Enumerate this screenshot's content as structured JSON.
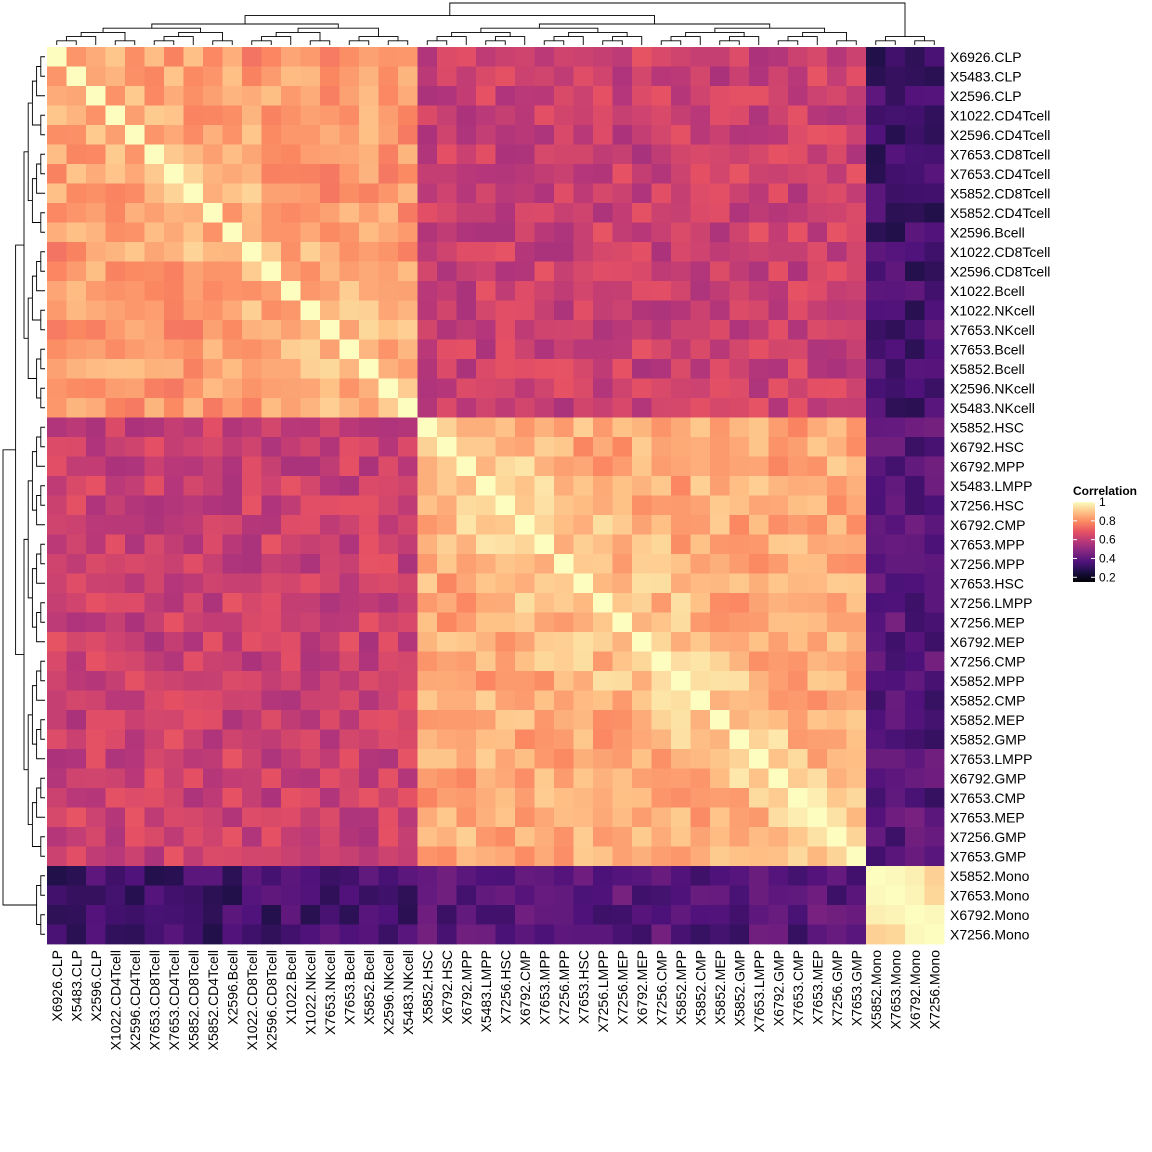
{
  "chart_data": {
    "type": "heatmap",
    "title": "",
    "xlabel": "",
    "ylabel": "",
    "labels": [
      "X6926.CLP",
      "X5483.CLP",
      "X2596.CLP",
      "X1022.CD4Tcell",
      "X2596.CD4Tcell",
      "X7653.CD8Tcell",
      "X7653.CD4Tcell",
      "X5852.CD8Tcell",
      "X5852.CD4Tcell",
      "X2596.Bcell",
      "X1022.CD8Tcell",
      "X2596.CD8Tcell",
      "X1022.Bcell",
      "X1022.NKcell",
      "X7653.NKcell",
      "X7653.Bcell",
      "X5852.Bcell",
      "X2596.NKcell",
      "X5483.NKcell",
      "X5852.HSC",
      "X6792.HSC",
      "X6792.MPP",
      "X5483.LMPP",
      "X7256.HSC",
      "X6792.CMP",
      "X7653.MPP",
      "X7256.MPP",
      "X7653.HSC",
      "X7256.LMPP",
      "X7256.MEP",
      "X6792.MEP",
      "X7256.CMP",
      "X5852.MPP",
      "X5852.CMP",
      "X5852.MEP",
      "X5852.GMP",
      "X7653.LMPP",
      "X6792.GMP",
      "X7653.CMP",
      "X7653.MEP",
      "X7256.GMP",
      "X7653.GMP",
      "X5852.Mono",
      "X7653.Mono",
      "X6792.Mono",
      "X7256.Mono"
    ],
    "groups": {
      "lymphoid": {
        "start": 0,
        "end": 18
      },
      "progenitor": {
        "start": 19,
        "end": 41
      },
      "mono": {
        "start": 42,
        "end": 45
      }
    },
    "correlation_blocks": {
      "within_lymphoid": 0.82,
      "within_progenitor": 0.85,
      "within_mono": 0.93,
      "lymphoid_vs_progenitor": 0.62,
      "lymphoid_vs_mono": 0.33,
      "progenitor_vs_mono": 0.38,
      "diagonal": 1.0
    },
    "legend": {
      "title": "Correlation",
      "ticks": [
        1,
        0.8,
        0.6,
        0.4,
        0.2
      ],
      "range": [
        0.15,
        1.0
      ]
    },
    "colormap": [
      "#000004",
      "#1c1044",
      "#4f127b",
      "#812581",
      "#b5367a",
      "#e55064",
      "#fb8761",
      "#fec287",
      "#fcfdbf"
    ]
  }
}
